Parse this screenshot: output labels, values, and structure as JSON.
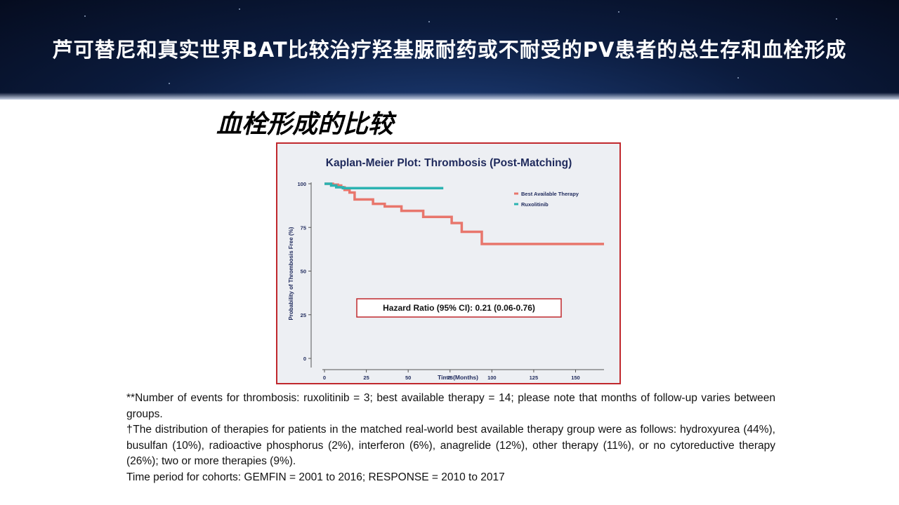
{
  "header": {
    "title": "芦可替尼和真实世界BAT比较治疗羟基脲耐药或不耐受的PV患者的总生存和血栓形成"
  },
  "section": {
    "subtitle": "血栓形成的比较"
  },
  "chart_data": {
    "type": "line",
    "style": "kaplan-meier-step",
    "title": "Kaplan-Meier Plot: Thrombosis (Post-Matching)",
    "xlabel": "Time (Months)",
    "ylabel": "Probability of Thrombosis Free (%)",
    "xlim": [
      0,
      167
    ],
    "ylim": [
      0,
      100
    ],
    "x_ticks": [
      0,
      25,
      50,
      75,
      100,
      125,
      150
    ],
    "y_ticks": [
      0,
      25,
      50,
      75,
      100
    ],
    "grid": false,
    "legend_position": "top-right",
    "series": [
      {
        "name": "Best Available Therapy",
        "color": "#e8766c",
        "points": [
          [
            0,
            100
          ],
          [
            5,
            100
          ],
          [
            5,
            99.5
          ],
          [
            8,
            99.5
          ],
          [
            8,
            99
          ],
          [
            10,
            99
          ],
          [
            10,
            98
          ],
          [
            12,
            98
          ],
          [
            12,
            96.5
          ],
          [
            15,
            96.5
          ],
          [
            15,
            95
          ],
          [
            18,
            95
          ],
          [
            18,
            91
          ],
          [
            29,
            91
          ],
          [
            29,
            88.5
          ],
          [
            36,
            88.5
          ],
          [
            36,
            87
          ],
          [
            46,
            87
          ],
          [
            46,
            84.5
          ],
          [
            59,
            84.5
          ],
          [
            59,
            81
          ],
          [
            76,
            81
          ],
          [
            76,
            77.5
          ],
          [
            82,
            77.5
          ],
          [
            82,
            72.5
          ],
          [
            94,
            72.5
          ],
          [
            94,
            65.5
          ],
          [
            167,
            65.5
          ]
        ]
      },
      {
        "name": "Ruxolitinib",
        "color": "#2bb3b1",
        "points": [
          [
            0,
            100
          ],
          [
            4,
            100
          ],
          [
            4,
            99
          ],
          [
            7,
            99
          ],
          [
            7,
            98
          ],
          [
            11,
            98
          ],
          [
            11,
            97.5
          ],
          [
            71,
            97.5
          ]
        ]
      }
    ],
    "annotation": "Hazard Ratio (95% CI): 0.21 (0.06-0.76)"
  },
  "footnotes": [
    "**Number of events for thrombosis: ruxolitinib = 3; best available therapy = 14; please note that months of follow-up varies between groups.",
    "†The distribution of therapies for patients in the matched real-world best available therapy group were as follows: hydroxyurea (44%), busulfan (10%), radioactive phosphorus (2%), interferon (6%), anagrelide (12%), other therapy (11%), or no cytoreductive therapy (26%); two or more therapies (9%).",
    "Time period for cohorts: GEMFIN = 2001 to 2016; RESPONSE = 2010 to 2017"
  ]
}
